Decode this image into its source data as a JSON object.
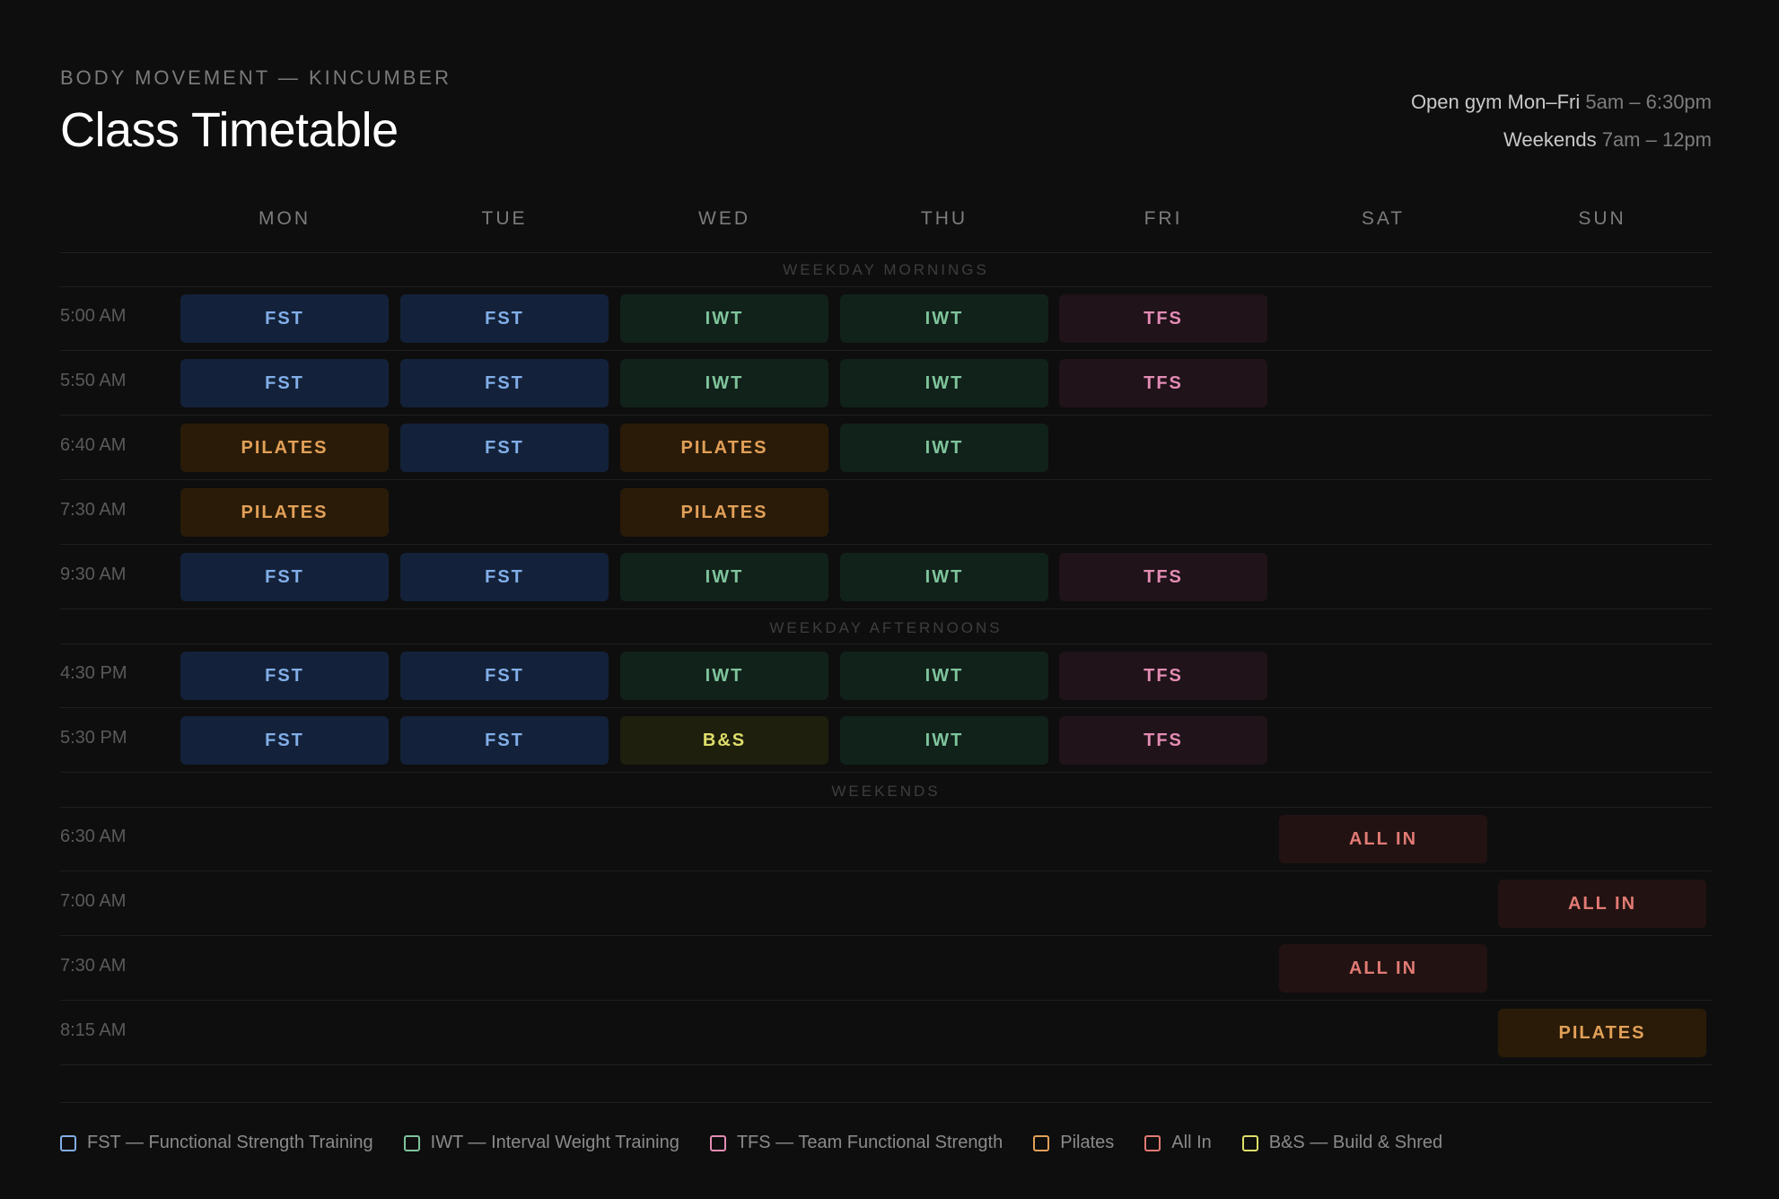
{
  "header": {
    "eyebrow": "BODY MOVEMENT — KINCUMBER",
    "title": "Class Timetable",
    "hours": [
      {
        "label": "Open gym Mon–Fri",
        "value": "5am – 6:30pm"
      },
      {
        "label": "Weekends",
        "value": "7am – 12pm"
      }
    ]
  },
  "days": [
    "MON",
    "TUE",
    "WED",
    "THU",
    "FRI",
    "SAT",
    "SUN"
  ],
  "sections": {
    "mornings": "WEEKDAY MORNINGS",
    "afternoons": "WEEKDAY AFTERNOONS",
    "weekends": "WEEKENDS"
  },
  "class_colors": {
    "FST": "#82aee8",
    "IWT": "#7fc49c",
    "TFS": "#e38cb4",
    "PILATES": "#e2a058",
    "ALL IN": "#e27a74",
    "B&S": "#dede6a"
  },
  "rows": [
    {
      "time": "5:00 AM",
      "classes": [
        "FST",
        "FST",
        "IWT",
        "IWT",
        "TFS",
        "",
        ""
      ]
    },
    {
      "time": "5:50 AM",
      "classes": [
        "FST",
        "FST",
        "IWT",
        "IWT",
        "TFS",
        "",
        ""
      ]
    },
    {
      "time": "6:40 AM",
      "classes": [
        "PILATES",
        "FST",
        "PILATES",
        "IWT",
        "",
        "",
        ""
      ]
    },
    {
      "time": "7:30 AM",
      "classes": [
        "PILATES",
        "",
        "PILATES",
        "",
        "",
        "",
        ""
      ]
    },
    {
      "time": "9:30 AM",
      "classes": [
        "FST",
        "FST",
        "IWT",
        "IWT",
        "TFS",
        "",
        ""
      ]
    },
    {
      "time": "4:30 PM",
      "classes": [
        "FST",
        "FST",
        "IWT",
        "IWT",
        "TFS",
        "",
        ""
      ]
    },
    {
      "time": "5:30 PM",
      "classes": [
        "FST",
        "FST",
        "B&S",
        "IWT",
        "TFS",
        "",
        ""
      ]
    },
    {
      "time": "6:30 AM",
      "classes": [
        "",
        "",
        "",
        "",
        "",
        "ALL IN",
        ""
      ]
    },
    {
      "time": "7:00 AM",
      "classes": [
        "",
        "",
        "",
        "",
        "",
        "",
        "ALL IN"
      ]
    },
    {
      "time": "7:30 AM",
      "classes": [
        "",
        "",
        "",
        "",
        "",
        "ALL IN",
        ""
      ]
    },
    {
      "time": "8:15 AM",
      "classes": [
        "",
        "",
        "",
        "",
        "",
        "",
        "PILATES"
      ]
    }
  ],
  "legend": [
    {
      "key": "FST",
      "label": "FST — Functional Strength Training"
    },
    {
      "key": "IWT",
      "label": "IWT — Interval Weight Training"
    },
    {
      "key": "TFS",
      "label": "TFS — Team Functional Strength"
    },
    {
      "key": "PILATES",
      "label": "Pilates"
    },
    {
      "key": "ALL IN",
      "label": "All In"
    },
    {
      "key": "B&S",
      "label": "B&S — Build & Shred"
    }
  ]
}
